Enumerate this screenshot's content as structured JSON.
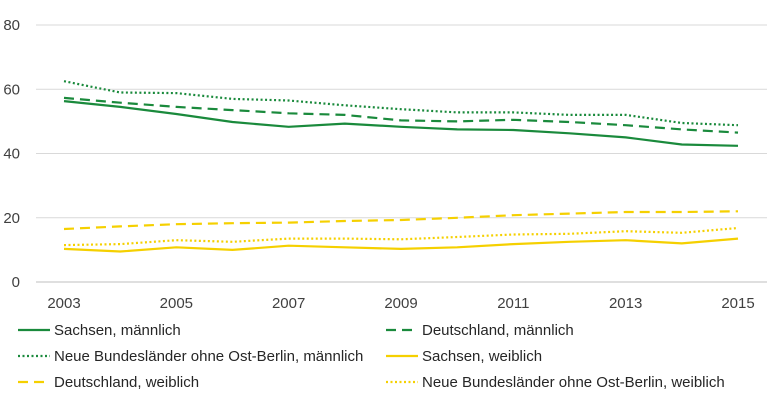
{
  "chart_data": {
    "type": "line",
    "x": [
      2003,
      2004,
      2005,
      2006,
      2007,
      2008,
      2009,
      2010,
      2011,
      2012,
      2013,
      2014,
      2015
    ],
    "x_tick_labels": [
      "2003",
      "2005",
      "2007",
      "2009",
      "2011",
      "2013",
      "2015"
    ],
    "y_tick_labels": [
      "0",
      "20",
      "40",
      "60",
      "80"
    ],
    "ylim": [
      0,
      80
    ],
    "grid": "horizontal",
    "legend_position": "bottom",
    "series": [
      {
        "name": "Sachsen, männlich",
        "color": "#1a8a3c",
        "dash": "solid",
        "values": [
          56.3,
          54.5,
          52.3,
          49.8,
          48.3,
          49.3,
          48.3,
          47.5,
          47.3,
          46.3,
          45.0,
          42.8,
          42.4
        ]
      },
      {
        "name": "Deutschland, männlich",
        "color": "#1a8a3c",
        "dash": "dashed",
        "values": [
          57.3,
          55.8,
          54.5,
          53.5,
          52.5,
          52.0,
          50.3,
          50.0,
          50.5,
          49.8,
          48.8,
          47.5,
          46.5
        ]
      },
      {
        "name": "Neue Bundesländer ohne Ost-Berlin, männlich",
        "color": "#1a8a3c",
        "dash": "dotted",
        "values": [
          62.5,
          59.0,
          58.8,
          57.0,
          56.5,
          55.0,
          53.8,
          52.8,
          52.8,
          52.0,
          52.0,
          49.5,
          48.8
        ]
      },
      {
        "name": "Sachsen, weiblich",
        "color": "#f5d000",
        "dash": "solid",
        "values": [
          10.3,
          9.5,
          10.8,
          10.0,
          11.3,
          10.8,
          10.3,
          10.8,
          11.8,
          12.5,
          13.0,
          12.0,
          13.5
        ]
      },
      {
        "name": "Deutschland, weiblich",
        "color": "#f5d000",
        "dash": "dashed",
        "values": [
          16.5,
          17.3,
          18.0,
          18.3,
          18.5,
          19.0,
          19.3,
          20.0,
          20.8,
          21.3,
          21.8,
          21.8,
          22.0
        ]
      },
      {
        "name": "Neue Bundesländer ohne Ost-Berlin, weiblich",
        "color": "#f5d000",
        "dash": "dotted",
        "values": [
          11.5,
          11.8,
          13.0,
          12.5,
          13.5,
          13.5,
          13.3,
          14.0,
          14.8,
          15.0,
          15.8,
          15.3,
          16.8
        ]
      }
    ]
  }
}
